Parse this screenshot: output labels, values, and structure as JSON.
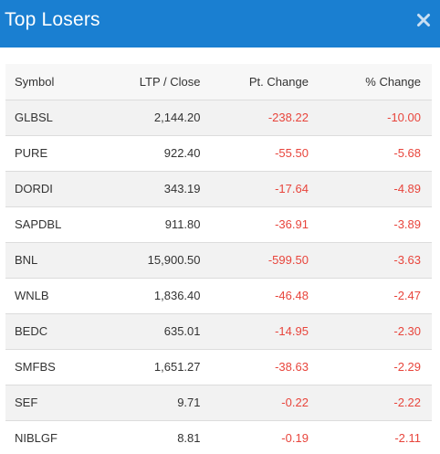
{
  "modal": {
    "title": "Top Losers",
    "close_icon": "close-icon",
    "header_color": "#1a7fd1",
    "negative_color": "#e8453c"
  },
  "table": {
    "headers": {
      "symbol": "Symbol",
      "ltp": "LTP / Close",
      "pt_change": "Pt. Change",
      "pct_change": "% Change"
    },
    "rows": [
      {
        "symbol": "GLBSL",
        "ltp": "2,144.20",
        "pt_change": "-238.22",
        "pct_change": "-10.00"
      },
      {
        "symbol": "PURE",
        "ltp": "922.40",
        "pt_change": "-55.50",
        "pct_change": "-5.68"
      },
      {
        "symbol": "DORDI",
        "ltp": "343.19",
        "pt_change": "-17.64",
        "pct_change": "-4.89"
      },
      {
        "symbol": "SAPDBL",
        "ltp": "911.80",
        "pt_change": "-36.91",
        "pct_change": "-3.89"
      },
      {
        "symbol": "BNL",
        "ltp": "15,900.50",
        "pt_change": "-599.50",
        "pct_change": "-3.63"
      },
      {
        "symbol": "WNLB",
        "ltp": "1,836.40",
        "pt_change": "-46.48",
        "pct_change": "-2.47"
      },
      {
        "symbol": "BEDC",
        "ltp": "635.01",
        "pt_change": "-14.95",
        "pct_change": "-2.30"
      },
      {
        "symbol": "SMFBS",
        "ltp": "1,651.27",
        "pt_change": "-38.63",
        "pct_change": "-2.29"
      },
      {
        "symbol": "SEF",
        "ltp": "9.71",
        "pt_change": "-0.22",
        "pct_change": "-2.22"
      },
      {
        "symbol": "NIBLGF",
        "ltp": "8.81",
        "pt_change": "-0.19",
        "pct_change": "-2.11"
      }
    ]
  }
}
